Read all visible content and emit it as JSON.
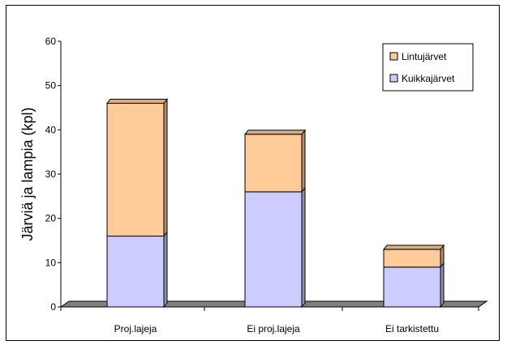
{
  "chart_data": {
    "type": "bar",
    "stacked": true,
    "three_d": true,
    "categories": [
      "Proj.lajeja",
      "Ei proj.lajeja",
      "Ei tarkistettu"
    ],
    "series": [
      {
        "name": "Kuikkajärvet",
        "values": [
          16,
          26,
          9
        ],
        "color": "#ccccff"
      },
      {
        "name": "Lintujärvet",
        "values": [
          30,
          13,
          4
        ],
        "color": "#ffcc99"
      }
    ],
    "ylabel": "Järviä ja lampia (kpl)",
    "ylim": [
      0,
      60
    ],
    "yticks": [
      0,
      10,
      20,
      30,
      40,
      50,
      60
    ],
    "grid": false,
    "legend_position": "top-right",
    "legend_order": [
      "Lintujärvet",
      "Kuikkajärvet"
    ]
  }
}
